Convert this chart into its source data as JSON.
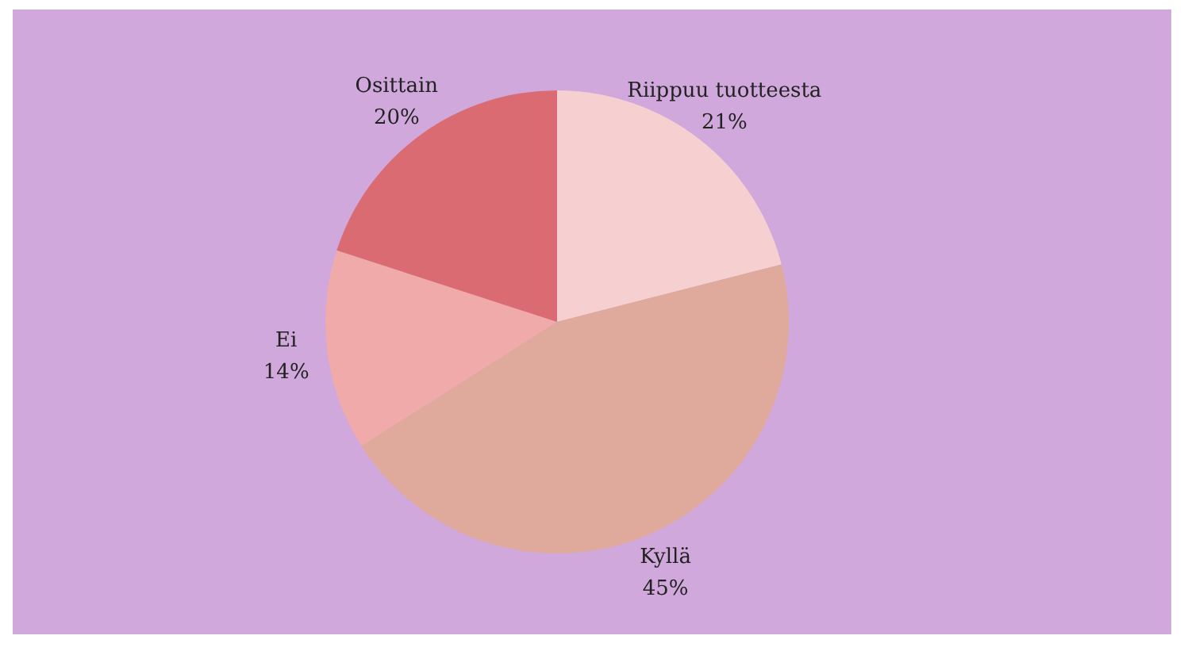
{
  "chart_data": {
    "type": "pie",
    "categories": [
      "Riippuu tuotteesta",
      "Kyllä",
      "Ei",
      "Osittain"
    ],
    "values": [
      21,
      45,
      14,
      20
    ],
    "value_labels": [
      "21%",
      "45%",
      "14%",
      "20%"
    ],
    "colors": [
      "#f6cfd0",
      "#dfa99b",
      "#f0aaa9",
      "#db6b72"
    ]
  }
}
